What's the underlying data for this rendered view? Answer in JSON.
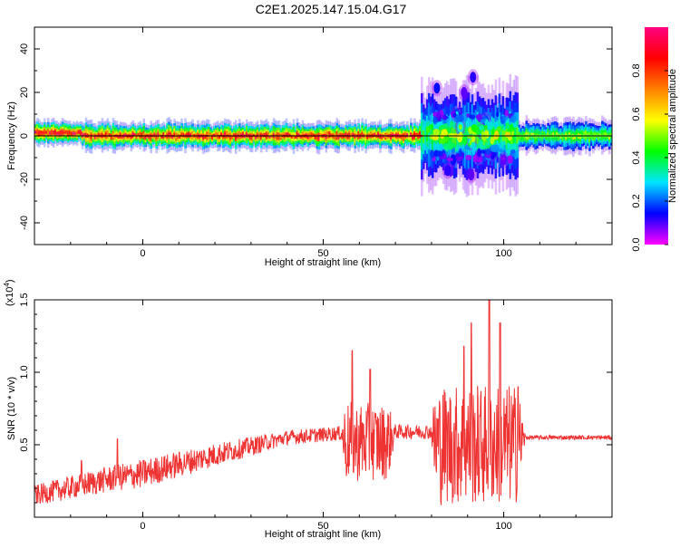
{
  "figure_title": "C2E1.2025.147.15.04.G17",
  "chart_data": [
    {
      "type": "heatmap",
      "xlabel": "Height of straight line (km)",
      "ylabel": "Frequency (Hz)",
      "xlim": [
        -30,
        130
      ],
      "ylim": [
        -50,
        50
      ],
      "x_ticks": [
        0,
        50,
        100
      ],
      "y_ticks": [
        -40,
        -20,
        0,
        20,
        40
      ],
      "grid": false,
      "colorbar": {
        "label": "Normalized spectral amplitude",
        "range": [
          0,
          1
        ],
        "ticks": [
          0.0,
          0.2,
          0.4,
          0.6,
          0.8
        ],
        "tick_labels": [
          "0.0",
          "0.2",
          "0.4",
          "0.6",
          "0.8"
        ],
        "colormap": [
          "#ff00ff",
          "#0000ff",
          "#00e5ff",
          "#00ff00",
          "#ffff00",
          "#ff8000",
          "#ff0000",
          "#ff0080"
        ]
      },
      "segments": [
        {
          "x": [
            -30,
            -17
          ],
          "center_hz": 1.5,
          "spread_hz": 3,
          "peak": 0.95
        },
        {
          "x": [
            -17,
            77
          ],
          "center_hz": 0,
          "spread_hz": 3.5,
          "peak": 0.9
        },
        {
          "x": [
            77,
            104
          ],
          "center_hz": 0,
          "spread_hz": 12,
          "peak": 0.45
        },
        {
          "x": [
            102,
            130
          ],
          "center_hz": 0,
          "spread_hz": 4,
          "peak": 0.55
        }
      ],
      "blobs": [
        {
          "x": 81.5,
          "y": 22,
          "amp": 0.25
        },
        {
          "x": 91.5,
          "y": 27,
          "amp": 0.2
        },
        {
          "x": 89,
          "y": 20,
          "amp": 0.15
        },
        {
          "x": 87,
          "y": 10,
          "amp": 0.3
        },
        {
          "x": 86,
          "y": -11,
          "amp": 0.25
        },
        {
          "x": 84.5,
          "y": -16,
          "amp": 0.2
        },
        {
          "x": 93,
          "y": -10,
          "amp": 0.25
        },
        {
          "x": 91,
          "y": -18,
          "amp": 0.15
        },
        {
          "x": 97,
          "y": -8,
          "amp": 0.2
        },
        {
          "x": 100,
          "y": -11,
          "amp": 0.15
        },
        {
          "x": 95,
          "y": 7,
          "amp": 0.3
        },
        {
          "x": 88,
          "y": 4,
          "amp": 0.5
        },
        {
          "x": 91,
          "y": -3,
          "amp": 0.5
        },
        {
          "x": 94,
          "y": 2,
          "amp": 0.45
        }
      ],
      "reference_line_hz": 0
    },
    {
      "type": "line",
      "xlabel": "Height of straight line (km)",
      "ylabel": "SNR (10 * v/v)",
      "y_multiplier": "(x10",
      "y_multiplier_exp": "4",
      "y_multiplier_close": ")",
      "xlim": [
        -30,
        130
      ],
      "ylim": [
        0,
        15000
      ],
      "x_ticks": [
        0,
        50,
        100
      ],
      "y_ticks": [
        5000,
        10000,
        15000
      ],
      "y_tick_labels": [
        "0.5",
        "1.0",
        "1.5"
      ],
      "grid": false,
      "color": "#ee3333",
      "envelope": [
        {
          "x": -30,
          "mean": 1500,
          "noise": 700
        },
        {
          "x": -10,
          "mean": 2600,
          "noise": 900
        },
        {
          "x": 0,
          "mean": 3000,
          "noise": 1000
        },
        {
          "x": 20,
          "mean": 4300,
          "noise": 800
        },
        {
          "x": 40,
          "mean": 5500,
          "noise": 500
        },
        {
          "x": 55,
          "mean": 5800,
          "noise": 500
        },
        {
          "x": 56,
          "mean": 5200,
          "noise": 2800
        },
        {
          "x": 68,
          "mean": 5200,
          "noise": 2600
        },
        {
          "x": 70,
          "mean": 5900,
          "noise": 500
        },
        {
          "x": 80,
          "mean": 5900,
          "noise": 500
        },
        {
          "x": 81,
          "mean": 5000,
          "noise": 4200
        },
        {
          "x": 104,
          "mean": 5000,
          "noise": 4200
        },
        {
          "x": 106,
          "mean": 5500,
          "noise": 150
        },
        {
          "x": 130,
          "mean": 5500,
          "noise": 150
        }
      ],
      "peaks": [
        {
          "x": -17,
          "y": 3900
        },
        {
          "x": -7,
          "y": 5400
        },
        {
          "x": 58,
          "y": 11500
        },
        {
          "x": 63,
          "y": 10200
        },
        {
          "x": 89,
          "y": 11800
        },
        {
          "x": 91,
          "y": 13400
        },
        {
          "x": 96,
          "y": 15000
        },
        {
          "x": 99,
          "y": 13400
        },
        {
          "x": 104,
          "y": 9000
        }
      ]
    }
  ]
}
